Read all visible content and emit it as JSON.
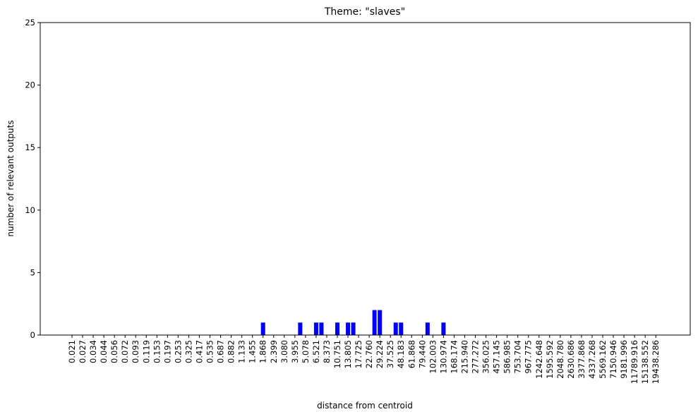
{
  "chart_data": {
    "type": "bar",
    "title": "Theme: \"slaves\"",
    "x_label": "distance from centroid",
    "y_label": "number of relevant outputs",
    "categories": [
      "0.021",
      null,
      "0.027",
      null,
      "0.034",
      null,
      "0.044",
      null,
      "0.056",
      null,
      "0.072",
      null,
      "0.093",
      null,
      "0.119",
      null,
      "0.153",
      null,
      "0.197",
      null,
      "0.253",
      null,
      "0.325",
      null,
      "0.417",
      null,
      "0.535",
      null,
      "0.687",
      null,
      "0.882",
      null,
      "1.133",
      null,
      "1.455",
      null,
      "1.868",
      null,
      "2.399",
      null,
      "3.080",
      null,
      "3.955",
      null,
      "5.078",
      null,
      "6.521",
      null,
      "8.373",
      null,
      "10.751",
      null,
      "13.805",
      null,
      "17.725",
      null,
      "22.760",
      null,
      "29.224",
      null,
      "37.525",
      null,
      "48.183",
      null,
      "61.868",
      null,
      "79.440",
      null,
      "102.003",
      null,
      "130.974",
      null,
      "168.174",
      null,
      "215.940",
      null,
      "277.272",
      null,
      "356.025",
      null,
      "457.145",
      null,
      "586.985",
      null,
      "753.704",
      null,
      "967.775",
      null,
      "1242.648",
      null,
      "1595.592",
      null,
      "2048.780",
      null,
      "2630.686",
      null,
      "3377.868",
      null,
      "4337.268",
      null,
      "5569.162",
      null,
      "7150.946",
      null,
      "9181.996",
      null,
      "11789.916",
      null,
      "15138.552",
      null,
      "19438.286"
    ],
    "values": [
      0,
      0,
      0,
      0,
      0,
      0,
      0,
      0,
      0,
      0,
      0,
      0,
      0,
      0,
      0,
      0,
      0,
      0,
      0,
      0,
      0,
      0,
      0,
      0,
      0,
      0,
      0,
      0,
      0,
      0,
      0,
      0,
      0,
      0,
      0,
      0,
      1,
      0,
      0,
      0,
      0,
      0,
      0,
      1,
      0,
      0,
      1,
      1,
      0,
      0,
      1,
      0,
      1,
      1,
      0,
      0,
      0,
      2,
      2,
      0,
      0,
      1,
      1,
      0,
      0,
      0,
      0,
      1,
      0,
      0,
      1,
      0,
      0,
      0,
      0,
      0,
      0,
      0,
      0,
      0,
      0,
      0,
      0,
      0,
      0,
      0,
      0,
      0,
      0,
      0,
      0,
      0,
      0,
      0,
      0,
      0,
      0,
      0,
      0,
      0,
      0,
      0,
      0,
      0,
      0,
      0,
      0,
      0,
      0,
      0,
      0
    ],
    "color": "#0000ff",
    "ylim": [
      0,
      25
    ],
    "yticks": [
      0,
      5,
      10,
      15,
      20,
      25
    ],
    "grid": false
  }
}
